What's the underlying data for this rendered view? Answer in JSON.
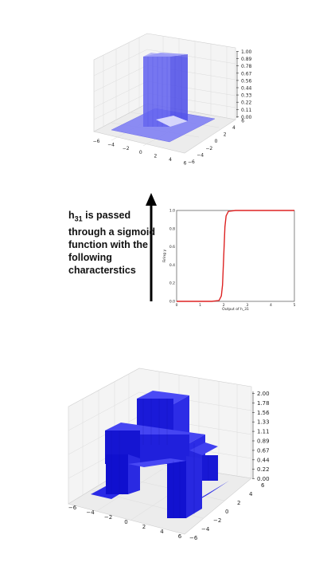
{
  "top_plot": {
    "z_ticks": [
      "1.00",
      "0.89",
      "0.78",
      "0.67",
      "0.56",
      "0.44",
      "0.33",
      "0.22",
      "0.11",
      "0.00"
    ],
    "x_ticks": [
      "−6",
      "−4",
      "−2",
      "0",
      "2",
      "4",
      "6"
    ],
    "y_ticks": [
      "−6",
      "−4",
      "−2",
      "0",
      "2",
      "4",
      "6"
    ],
    "bar_color": "#6f6ff0"
  },
  "caption": {
    "h": "h",
    "sub": "31",
    "rest": " is passed through a sigmoid function with the following characterstics"
  },
  "sigmoid_plot": {
    "chart_data": {
      "type": "line",
      "x": [
        0,
        1,
        1.5,
        1.8,
        1.9,
        1.95,
        2.0,
        2.05,
        2.1,
        2.2,
        2.5,
        3,
        4,
        5
      ],
      "y": [
        0,
        0,
        0.0,
        0.01,
        0.06,
        0.18,
        0.5,
        0.82,
        0.94,
        0.99,
        1.0,
        1.0,
        1.0,
        1.0
      ],
      "xlim": [
        0,
        5
      ],
      "ylim": [
        0,
        1.0
      ],
      "xticks": [
        "0",
        "1",
        "2",
        "3",
        "4",
        "5"
      ],
      "yticks": [
        "0.0",
        "0.2",
        "0.4",
        "0.6",
        "0.8",
        "1.0"
      ],
      "xlabel": "Output of  h_31",
      "ylabel": "Firing y",
      "line_color": "#dd2222"
    }
  },
  "bottom_plot": {
    "z_ticks": [
      "2.00",
      "1.78",
      "1.56",
      "1.33",
      "1.11",
      "0.89",
      "0.67",
      "0.44",
      "0.22",
      "0.00"
    ],
    "x_ticks": [
      "−6",
      "−4",
      "−2",
      "0",
      "2",
      "4",
      "6"
    ],
    "y_ticks": [
      "−6",
      "−4",
      "−2",
      "0",
      "2",
      "4",
      "6"
    ],
    "bar_color": "#1f1fe0"
  }
}
